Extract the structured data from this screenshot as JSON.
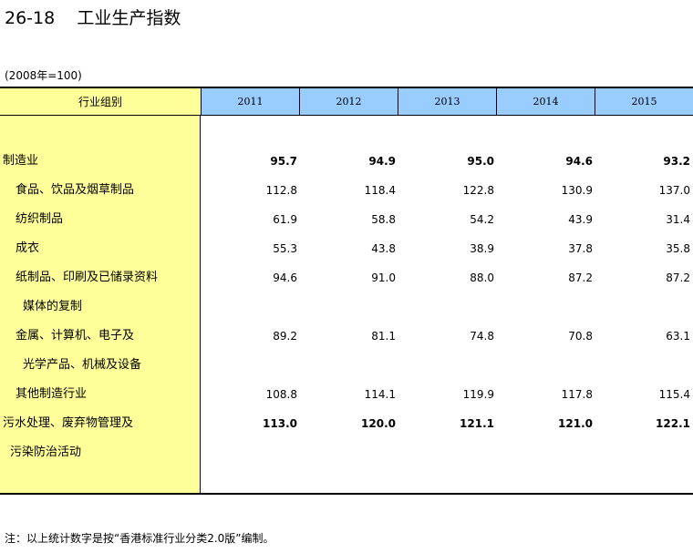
{
  "title": "26-18    工业生产指数",
  "base_note": "(2008年=100)",
  "header": {
    "category_label": "行业组别",
    "years": [
      "2011",
      "2012",
      "2013",
      "2014",
      "2015"
    ]
  },
  "rows": [
    {
      "label": "制造业",
      "values": [
        "95.7",
        "94.9",
        "95.0",
        "94.6",
        "93.2"
      ],
      "bold": true
    },
    {
      "label": "食品、饮品及烟草制品",
      "values": [
        "112.8",
        "118.4",
        "122.8",
        "130.9",
        "137.0"
      ]
    },
    {
      "label": "纺织制品",
      "values": [
        "61.9",
        "58.8",
        "54.2",
        "43.9",
        "31.4"
      ]
    },
    {
      "label": "成衣",
      "values": [
        "55.3",
        "43.8",
        "38.9",
        "37.8",
        "35.8"
      ]
    },
    {
      "label": "纸制品、印刷及已储录资料",
      "values": [
        "94.6",
        "91.0",
        "88.0",
        "87.2",
        "87.2"
      ]
    },
    {
      "label": "媒体的复制",
      "values": [
        "",
        "",
        "",
        "",
        ""
      ]
    },
    {
      "label": "金属、计算机、电子及",
      "values": [
        "89.2",
        "81.1",
        "74.8",
        "70.8",
        "63.1"
      ]
    },
    {
      "label": "光学产品、机械及设备",
      "values": [
        "",
        "",
        "",
        "",
        ""
      ]
    },
    {
      "label": "其他制造行业",
      "values": [
        "108.8",
        "114.1",
        "119.9",
        "117.8",
        "115.4"
      ]
    },
    {
      "label": "污水处理、废弃物管理及",
      "values": [
        "113.0",
        "120.0",
        "121.1",
        "121.0",
        "122.1"
      ],
      "bold": true
    },
    {
      "label": "污染防治活动",
      "values": [
        "",
        "",
        "",
        "",
        ""
      ]
    }
  ],
  "footnote": "注：以上统计数字是按“香港标准行业分类2.0版”编制。"
}
